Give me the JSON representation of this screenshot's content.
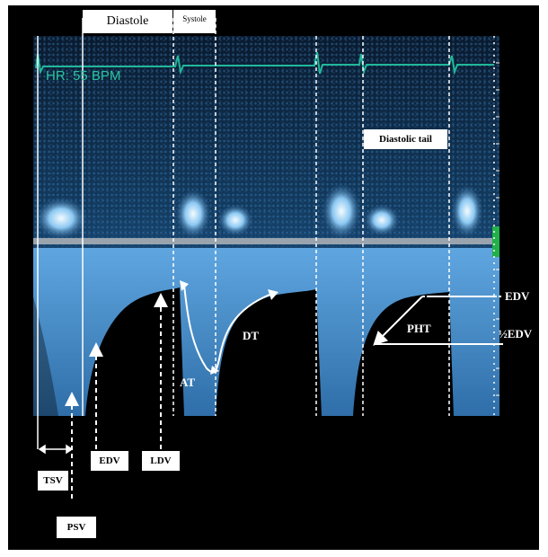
{
  "top_labels": {
    "diastole": "Diastole",
    "systole": "Systole"
  },
  "heart_rate": "HR: 55 BPM",
  "diastolic_tail": "Diastolic tail",
  "right_labels": {
    "edv": "EDV",
    "half_edv": "½EDV"
  },
  "curve_annotations": {
    "at": "AT",
    "dt": "DT",
    "pht": "PHT"
  },
  "bottom_labels": {
    "tsv": "TSV",
    "psv": "PSV",
    "edv": "EDV",
    "ldv": "LDV"
  },
  "colors": {
    "ecg": "#21b79a",
    "flow_bright": "#dff5ff",
    "flow_mid": "#5fa6e0",
    "background": "#000000",
    "baseline_marker": "#22b04a"
  }
}
